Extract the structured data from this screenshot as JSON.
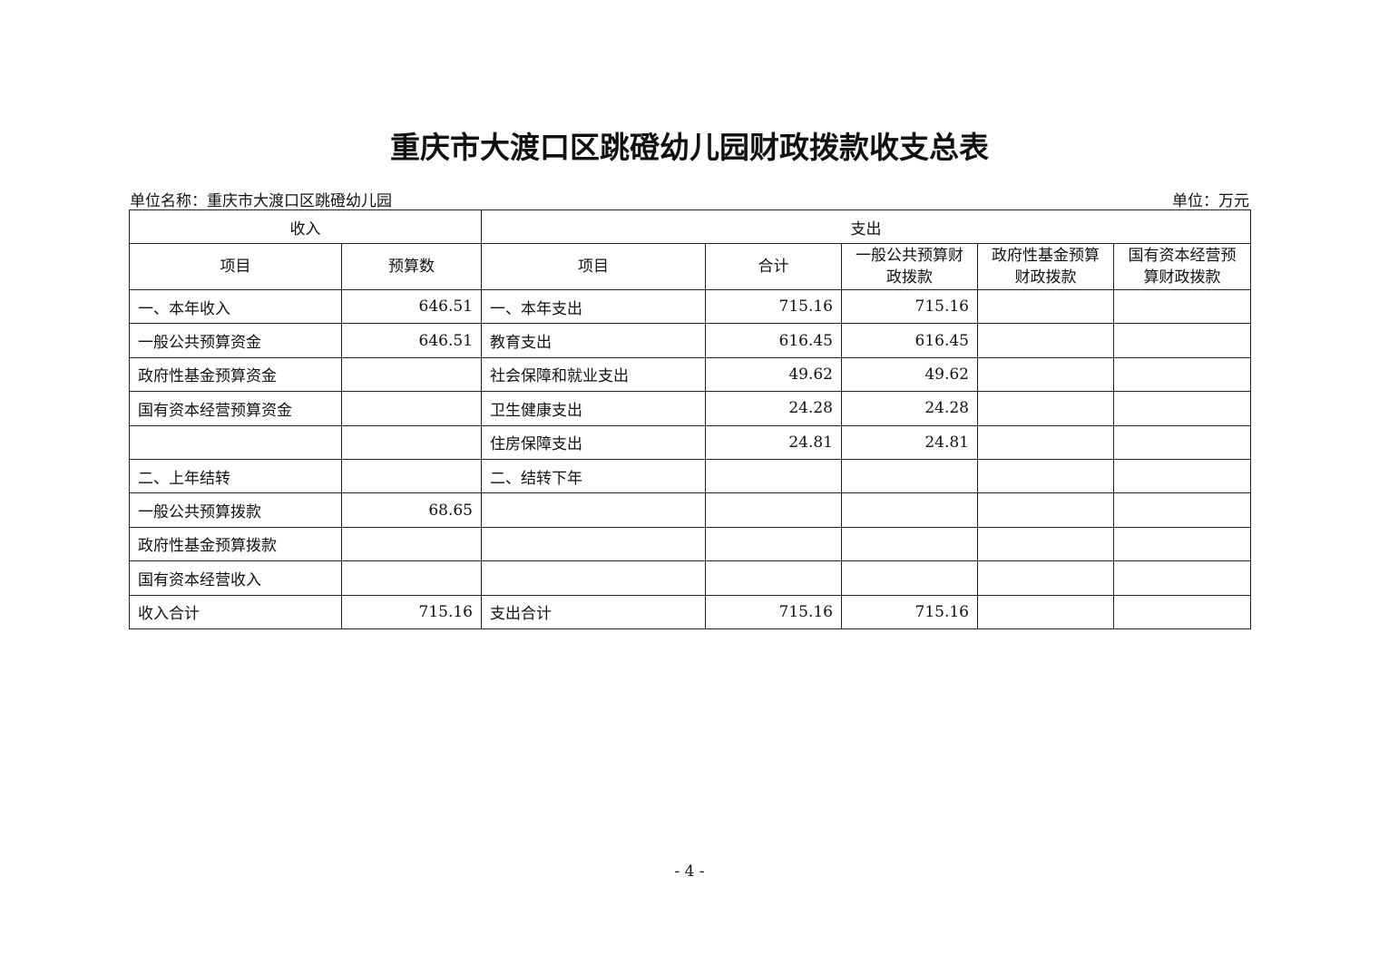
{
  "title": "重庆市大渡口区跳磴幼儿园财政拨款收支总表",
  "unit_name": "单位名称：重庆市大渡口区跳磴幼儿园",
  "unit": "单位：万元",
  "table": {
    "group_headers": {
      "income": "收入",
      "expense": "支出"
    },
    "headers": [
      "项目",
      "预算数",
      "项目",
      "合计",
      "一般公共预算财政拨款",
      "政府性基金预算财政拨款",
      "国有资本经营预算财政拨款"
    ],
    "rows": [
      [
        "一、本年收入",
        "646.51",
        "一、本年支出",
        "715.16",
        "715.16",
        "",
        ""
      ],
      [
        "一般公共预算资金",
        "646.51",
        "教育支出",
        "616.45",
        "616.45",
        "",
        ""
      ],
      [
        "政府性基金预算资金",
        "",
        "社会保障和就业支出",
        "49.62",
        "49.62",
        "",
        ""
      ],
      [
        "国有资本经营预算资金",
        "",
        "卫生健康支出",
        "24.28",
        "24.28",
        "",
        ""
      ],
      [
        "",
        "",
        "住房保障支出",
        "24.81",
        "24.81",
        "",
        ""
      ],
      [
        "二、上年结转",
        "",
        "二、结转下年",
        "",
        "",
        "",
        ""
      ],
      [
        "一般公共预算拨款",
        "68.65",
        "",
        "",
        "",
        "",
        ""
      ],
      [
        "政府性基金预算拨款",
        "",
        "",
        "",
        "",
        "",
        ""
      ],
      [
        "国有资本经营收入",
        "",
        "",
        "",
        "",
        "",
        ""
      ],
      [
        "收入合计",
        "715.16",
        "支出合计",
        "715.16",
        "715.16",
        "",
        ""
      ]
    ]
  },
  "page_number": "- 4 -"
}
